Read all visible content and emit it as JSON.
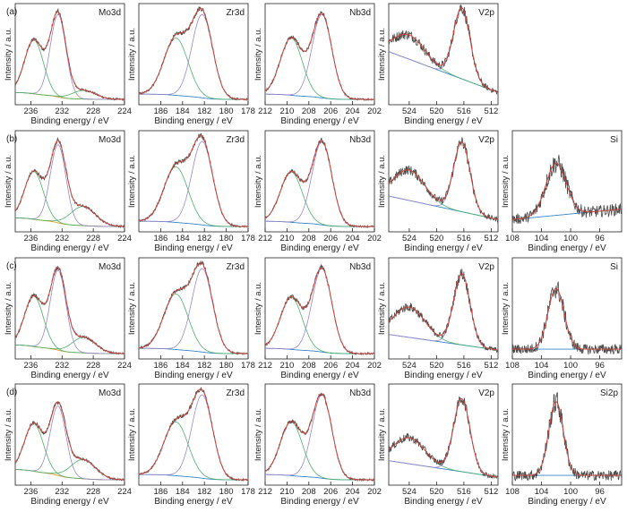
{
  "figure": {
    "row_labels": [
      "(a)",
      "(b)",
      "(c)",
      "(d)"
    ],
    "xlabel": "Binding energy / eV",
    "ylabel": "Intensity / a.u.",
    "colors": {
      "raw": "#4a4a4a",
      "fit": "#d8443a",
      "comp_green": "#4caf6a",
      "comp_purple": "#9a87c8",
      "comp_teal": "#58b59a",
      "bg_blue": "#3a86c8",
      "bg_orange": "#e09a2a"
    }
  },
  "chart_data": [
    {
      "panel": "a-Mo3d",
      "row": 0,
      "col": 0,
      "type": "line",
      "label": "Mo3d",
      "xlim": [
        238,
        224
      ],
      "ticks": [
        236,
        232,
        228,
        224
      ],
      "peaks": [
        {
          "c": 235.6,
          "h": 0.62,
          "w": 1.2
        },
        {
          "c": 232.5,
          "h": 0.95,
          "w": 1.0
        },
        {
          "c": 229.2,
          "h": 0.1,
          "w": 1.5
        }
      ],
      "background": {
        "type": "step",
        "start": 0.08,
        "end": 0.0
      },
      "bgcolor": "orange"
    },
    {
      "panel": "a-Zr3d",
      "row": 0,
      "col": 1,
      "type": "line",
      "label": "Zr3d",
      "xlim": [
        188,
        178
      ],
      "ticks": [
        186,
        184,
        182,
        180,
        178
      ],
      "peaks": [
        {
          "c": 184.6,
          "h": 0.66,
          "w": 1.1
        },
        {
          "c": 182.2,
          "h": 0.96,
          "w": 0.95
        }
      ],
      "background": {
        "type": "step",
        "start": 0.06,
        "end": 0.0
      },
      "bgcolor": "blue"
    },
    {
      "panel": "a-Nb3d",
      "row": 0,
      "col": 2,
      "type": "line",
      "label": "Nb3d",
      "xlim": [
        212,
        202
      ],
      "ticks": [
        212,
        210,
        208,
        206,
        204,
        202
      ],
      "peaks": [
        {
          "c": 209.6,
          "h": 0.66,
          "w": 1.0
        },
        {
          "c": 206.8,
          "h": 0.96,
          "w": 0.9
        }
      ],
      "background": {
        "type": "step",
        "start": 0.06,
        "end": 0.0
      },
      "bgcolor": "blue"
    },
    {
      "panel": "a-V2p",
      "row": 0,
      "col": 3,
      "type": "line",
      "label": "V2p",
      "xlim": [
        527,
        511
      ],
      "ticks": [
        524,
        520,
        516,
        512
      ],
      "peaks": [
        {
          "c": 524.0,
          "h": 0.28,
          "w": 2.3
        },
        {
          "c": 516.3,
          "h": 0.82,
          "w": 1.2
        }
      ],
      "background": {
        "type": "slope",
        "start": 0.55,
        "end": 0.08
      },
      "bgcolor": "blue"
    },
    {
      "panel": "b-Mo3d",
      "row": 1,
      "col": 0,
      "type": "line",
      "label": "Mo3d",
      "xlim": [
        238,
        224
      ],
      "ticks": [
        236,
        232,
        228,
        224
      ],
      "peaks": [
        {
          "c": 235.6,
          "h": 0.55,
          "w": 1.2
        },
        {
          "c": 232.5,
          "h": 0.9,
          "w": 1.0
        },
        {
          "c": 229.3,
          "h": 0.22,
          "w": 1.6
        }
      ],
      "background": {
        "type": "step",
        "start": 0.1,
        "end": 0.0
      },
      "bgcolor": "orange"
    },
    {
      "panel": "b-Zr3d",
      "row": 1,
      "col": 1,
      "type": "line",
      "label": "Zr3d",
      "xlim": [
        188,
        178
      ],
      "ticks": [
        186,
        184,
        182,
        180,
        178
      ],
      "peaks": [
        {
          "c": 184.6,
          "h": 0.64,
          "w": 1.1
        },
        {
          "c": 182.2,
          "h": 0.96,
          "w": 0.95
        }
      ],
      "background": {
        "type": "step",
        "start": 0.06,
        "end": 0.0
      },
      "bgcolor": "blue"
    },
    {
      "panel": "b-Nb3d",
      "row": 1,
      "col": 2,
      "type": "line",
      "label": "Nb3d",
      "xlim": [
        212,
        202
      ],
      "ticks": [
        212,
        210,
        208,
        206,
        204,
        202
      ],
      "peaks": [
        {
          "c": 209.6,
          "h": 0.58,
          "w": 1.0
        },
        {
          "c": 206.8,
          "h": 0.96,
          "w": 0.9
        }
      ],
      "background": {
        "type": "step",
        "start": 0.06,
        "end": 0.0
      },
      "bgcolor": "blue"
    },
    {
      "panel": "b-V2p",
      "row": 1,
      "col": 3,
      "type": "line",
      "label": "V2p",
      "xlim": [
        527,
        511
      ],
      "ticks": [
        524,
        520,
        516,
        512
      ],
      "peaks": [
        {
          "c": 524.0,
          "h": 0.35,
          "w": 2.3
        },
        {
          "c": 516.3,
          "h": 0.8,
          "w": 1.2
        }
      ],
      "background": {
        "type": "slope",
        "start": 0.35,
        "end": 0.08
      },
      "bgcolor": "blue"
    },
    {
      "panel": "b-Si",
      "row": 1,
      "col": 4,
      "type": "line",
      "label": "Si",
      "xlim": [
        108,
        93
      ],
      "ticks": [
        108,
        104,
        100,
        96
      ],
      "peaks": [
        {
          "c": 102.0,
          "h": 0.6,
          "w": 1.4
        }
      ],
      "background": {
        "type": "slope",
        "start": 0.08,
        "end": 0.2
      },
      "bgcolor": "blue"
    },
    {
      "panel": "c-Mo3d",
      "row": 2,
      "col": 0,
      "type": "line",
      "label": "Mo3d",
      "xlim": [
        238,
        224
      ],
      "ticks": [
        236,
        232,
        228,
        224
      ],
      "peaks": [
        {
          "c": 235.6,
          "h": 0.58,
          "w": 1.2
        },
        {
          "c": 232.5,
          "h": 0.92,
          "w": 1.0
        },
        {
          "c": 229.2,
          "h": 0.18,
          "w": 1.5
        }
      ],
      "background": {
        "type": "step",
        "start": 0.1,
        "end": 0.0
      },
      "bgcolor": "orange"
    },
    {
      "panel": "c-Zr3d",
      "row": 2,
      "col": 1,
      "type": "line",
      "label": "Zr3d",
      "xlim": [
        188,
        178
      ],
      "ticks": [
        186,
        184,
        182,
        180,
        178
      ],
      "peaks": [
        {
          "c": 184.6,
          "h": 0.64,
          "w": 1.1
        },
        {
          "c": 182.2,
          "h": 0.96,
          "w": 0.95
        }
      ],
      "background": {
        "type": "step",
        "start": 0.06,
        "end": 0.0
      },
      "bgcolor": "blue"
    },
    {
      "panel": "c-Nb3d",
      "row": 2,
      "col": 2,
      "type": "line",
      "label": "Nb3d",
      "xlim": [
        212,
        202
      ],
      "ticks": [
        212,
        210,
        208,
        206,
        204,
        202
      ],
      "peaks": [
        {
          "c": 209.6,
          "h": 0.6,
          "w": 1.0
        },
        {
          "c": 206.8,
          "h": 0.96,
          "w": 0.9
        }
      ],
      "background": {
        "type": "step",
        "start": 0.06,
        "end": 0.0
      },
      "bgcolor": "blue"
    },
    {
      "panel": "c-V2p",
      "row": 2,
      "col": 3,
      "type": "line",
      "label": "V2p",
      "xlim": [
        527,
        511
      ],
      "ticks": [
        524,
        520,
        516,
        512
      ],
      "peaks": [
        {
          "c": 524.0,
          "h": 0.35,
          "w": 2.3
        },
        {
          "c": 516.3,
          "h": 0.82,
          "w": 1.2
        }
      ],
      "background": {
        "type": "slope",
        "start": 0.22,
        "end": 0.04
      },
      "bgcolor": "blue"
    },
    {
      "panel": "c-Si",
      "row": 2,
      "col": 4,
      "type": "line",
      "label": "Si",
      "xlim": [
        108,
        93
      ],
      "ticks": [
        108,
        104,
        100,
        96
      ],
      "peaks": [
        {
          "c": 102.0,
          "h": 0.7,
          "w": 1.1
        }
      ],
      "background": {
        "type": "slope",
        "start": 0.05,
        "end": 0.05
      },
      "bgcolor": "blue"
    },
    {
      "panel": "d-Mo3d",
      "row": 3,
      "col": 0,
      "type": "line",
      "label": "Mo3d",
      "xlim": [
        238,
        224
      ],
      "ticks": [
        236,
        232,
        228,
        224
      ],
      "peaks": [
        {
          "c": 235.6,
          "h": 0.55,
          "w": 1.2
        },
        {
          "c": 232.5,
          "h": 0.8,
          "w": 1.0
        },
        {
          "c": 229.3,
          "h": 0.22,
          "w": 1.6
        }
      ],
      "background": {
        "type": "step",
        "start": 0.12,
        "end": 0.0
      },
      "bgcolor": "orange"
    },
    {
      "panel": "d-Zr3d",
      "row": 3,
      "col": 1,
      "type": "line",
      "label": "Zr3d",
      "xlim": [
        188,
        178
      ],
      "ticks": [
        186,
        184,
        182,
        180,
        178
      ],
      "peaks": [
        {
          "c": 184.6,
          "h": 0.62,
          "w": 1.1
        },
        {
          "c": 182.2,
          "h": 0.96,
          "w": 0.95
        }
      ],
      "background": {
        "type": "step",
        "start": 0.06,
        "end": 0.0
      },
      "bgcolor": "blue"
    },
    {
      "panel": "d-Nb3d",
      "row": 3,
      "col": 2,
      "type": "line",
      "label": "Nb3d",
      "xlim": [
        212,
        202
      ],
      "ticks": [
        212,
        210,
        208,
        206,
        204,
        202
      ],
      "peaks": [
        {
          "c": 209.6,
          "h": 0.62,
          "w": 1.0
        },
        {
          "c": 206.8,
          "h": 0.96,
          "w": 0.9
        }
      ],
      "background": {
        "type": "step",
        "start": 0.06,
        "end": 0.0
      },
      "bgcolor": "blue"
    },
    {
      "panel": "d-V2p",
      "row": 3,
      "col": 3,
      "type": "line",
      "label": "V2p",
      "xlim": [
        527,
        511
      ],
      "ticks": [
        524,
        520,
        516,
        512
      ],
      "peaks": [
        {
          "c": 524.0,
          "h": 0.3,
          "w": 2.3
        },
        {
          "c": 516.3,
          "h": 0.84,
          "w": 1.2
        }
      ],
      "background": {
        "type": "slope",
        "start": 0.22,
        "end": 0.03
      },
      "bgcolor": "blue"
    },
    {
      "panel": "d-Si2p",
      "row": 3,
      "col": 4,
      "type": "line",
      "label": "Si2p",
      "xlim": [
        108,
        93
      ],
      "ticks": [
        108,
        104,
        100,
        96
      ],
      "peaks": [
        {
          "c": 102.0,
          "h": 0.85,
          "w": 1.0
        }
      ],
      "background": {
        "type": "slope",
        "start": 0.05,
        "end": 0.05
      },
      "bgcolor": "blue"
    }
  ]
}
